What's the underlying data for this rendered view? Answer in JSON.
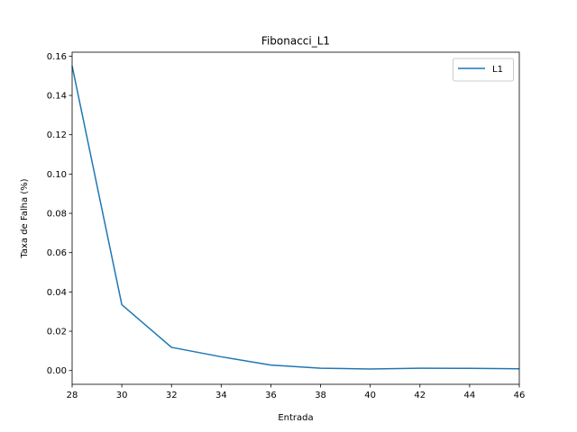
{
  "chart_data": {
    "type": "line",
    "title": "Fibonacci_L1",
    "xlabel": "Entrada",
    "ylabel": "Taxa de Falha (%)",
    "xlim": [
      28,
      46
    ],
    "ylim": [
      -0.007,
      0.162
    ],
    "xticks": [
      28,
      30,
      32,
      34,
      36,
      38,
      40,
      42,
      44,
      46
    ],
    "yticks": [
      0.0,
      0.02,
      0.04,
      0.06,
      0.08,
      0.1,
      0.12,
      0.14,
      0.16
    ],
    "ytick_labels": [
      "0.00",
      "0.02",
      "0.04",
      "0.06",
      "0.08",
      "0.10",
      "0.12",
      "0.14",
      "0.16"
    ],
    "grid": false,
    "legend_position": "top-right",
    "series": [
      {
        "name": "L1",
        "color": "#1f77b4",
        "x": [
          28,
          30,
          32,
          34,
          36,
          38,
          40,
          42,
          44,
          46
        ],
        "y": [
          0.155,
          0.0335,
          0.0118,
          0.007,
          0.0028,
          0.0012,
          0.0008,
          0.0012,
          0.0011,
          0.0009
        ]
      }
    ]
  }
}
